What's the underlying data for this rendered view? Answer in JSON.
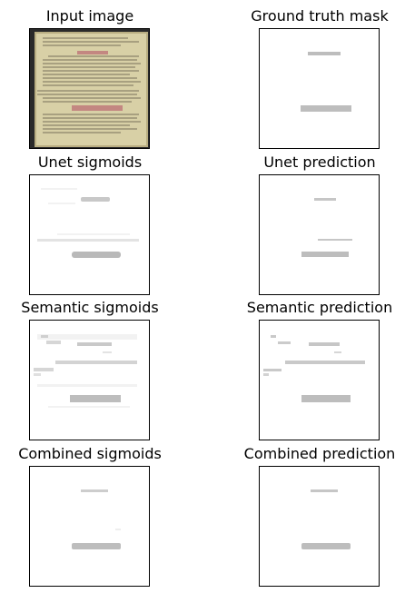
{
  "figure": {
    "panels": [
      {
        "title": "Input image"
      },
      {
        "title": "Ground truth mask"
      },
      {
        "title": "Unet sigmoids"
      },
      {
        "title": "Unet prediction"
      },
      {
        "title": "Semantic sigmoids"
      },
      {
        "title": "Semantic prediction"
      },
      {
        "title": "Combined sigmoids"
      },
      {
        "title": "Combined prediction"
      }
    ]
  },
  "colors": {
    "mask_gray": "#bdbdbd",
    "light_gray": "#e3e3e3",
    "faint_gray": "#f2f2f2",
    "parchment": "#d8d0a6",
    "ink": "#5a5140",
    "red_ink": "#c07a7a",
    "background_dark": "#2a2a2a"
  }
}
